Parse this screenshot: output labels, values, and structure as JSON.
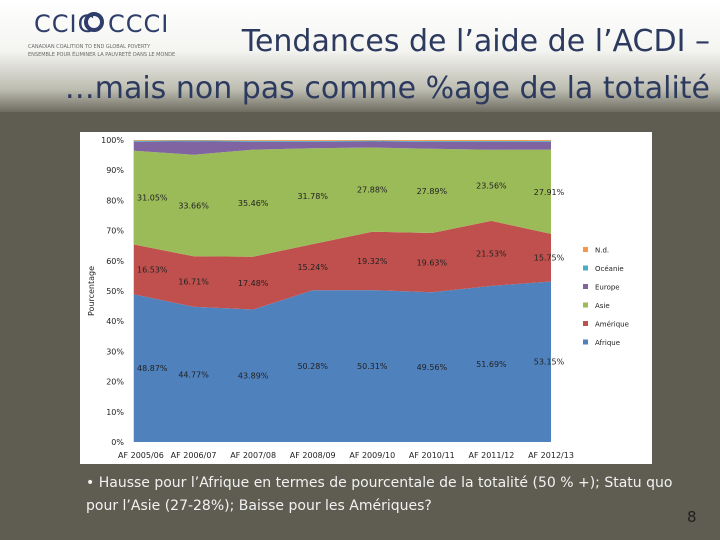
{
  "logo": {
    "text_left": "CCIC",
    "text_right": "CCCI",
    "line1": "CANADIAN COALITION TO END GLOBAL POVERTY",
    "line2": "ENSEMBLE POUR ÉLIMINER LA PAUVRETÉ DANS LE MONDE"
  },
  "title": {
    "line1": "Tendances de l’aide de l’ACDI –",
    "line2": "…mais non pas comme %age de la totalité"
  },
  "caption": {
    "bullet": "•",
    "text": "Hausse pour l’Afrique en termes de pourcentale de la totalité (50 % +); Statu quo pour l’Asie (27-28%); Baisse pour les Amériques?"
  },
  "slide_number": "8",
  "chart_data": {
    "type": "area",
    "stacked": true,
    "percent": true,
    "ylabel": "Pourcentage",
    "ylim": [
      0,
      100
    ],
    "y_ticks": [
      "0%",
      "10%",
      "20%",
      "30%",
      "40%",
      "50%",
      "60%",
      "70%",
      "80%",
      "90%",
      "100%"
    ],
    "categories": [
      "AF 2005/06",
      "AF 2006/07",
      "AF 2007/08",
      "AF 2008/09",
      "AF 2009/10",
      "AF 2010/11",
      "AF 2011/12",
      "AF 2012/13"
    ],
    "legend_position": "right",
    "series": [
      {
        "name": "Afrique",
        "color": "#4f81bd",
        "values": [
          48.87,
          44.77,
          43.89,
          50.28,
          50.31,
          49.56,
          51.69,
          53.15
        ],
        "labels": [
          "48.87%",
          "44.77%",
          "43.89%",
          "50.28%",
          "50.31%",
          "49.56%",
          "51.69%",
          "53.15%"
        ]
      },
      {
        "name": "Amérique",
        "color": "#c0504d",
        "values": [
          16.53,
          16.71,
          17.48,
          15.24,
          19.32,
          19.63,
          21.53,
          15.75
        ],
        "labels": [
          "16.53%",
          "16.71%",
          "17.48%",
          "15.24%",
          "19.32%",
          "19.63%",
          "21.53%",
          "15.75%"
        ]
      },
      {
        "name": "Asie",
        "color": "#9bbb59",
        "values": [
          31.05,
          33.66,
          35.46,
          31.78,
          27.88,
          27.89,
          23.56,
          27.91
        ],
        "labels": [
          "31.05%",
          "33.66%",
          "35.46%",
          "31.78%",
          "27.88%",
          "27.89%",
          "23.56%",
          "27.91%"
        ]
      },
      {
        "name": "Europe",
        "color": "#8064a2",
        "values": [
          3.0,
          4.4,
          2.6,
          2.1,
          2.0,
          2.3,
          2.6,
          2.6
        ],
        "labels": []
      },
      {
        "name": "Océanie",
        "color": "#4bacc6",
        "values": [
          0.3,
          0.3,
          0.3,
          0.3,
          0.3,
          0.3,
          0.3,
          0.3
        ],
        "labels": []
      },
      {
        "name": "N.d.",
        "color": "#f79646",
        "values": [
          0.25,
          0.16,
          0.27,
          0.3,
          0.19,
          0.32,
          0.32,
          0.29
        ],
        "labels": []
      }
    ],
    "legend": [
      "N.d.",
      "Océanie",
      "Europe",
      "Asie",
      "Amérique",
      "Afrique"
    ]
  }
}
